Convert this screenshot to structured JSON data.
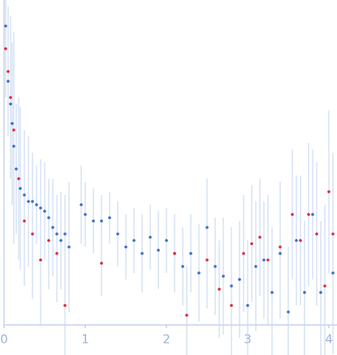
{
  "chart_data": {
    "type": "scatter",
    "xlim": [
      0,
      4.1
    ],
    "ylim": [
      0,
      100
    ],
    "xticks": [
      0,
      1,
      2,
      3,
      4
    ],
    "error_color": "#c3d4ee",
    "axis_color": "#aabde0",
    "series": [
      {
        "color": "#3a6fc4",
        "x": [
          0.02,
          0.05,
          0.08,
          0.1,
          0.12,
          0.15,
          0.2,
          0.25,
          0.3,
          0.35,
          0.4,
          0.45,
          0.5,
          0.55,
          0.6,
          0.65,
          0.7,
          0.75,
          0.8,
          0.95,
          1.0,
          1.1,
          1.2,
          1.3,
          1.4,
          1.5,
          1.6,
          1.7,
          1.8,
          1.9,
          2.0,
          2.1,
          2.2,
          2.3,
          2.4,
          2.5,
          2.6,
          2.7,
          2.8,
          2.9,
          3.0,
          3.1,
          3.2,
          3.3,
          3.4,
          3.5,
          3.6,
          3.7,
          3.8,
          3.9,
          4.05
        ],
        "values": [
          92,
          75,
          68,
          62,
          55,
          48,
          42,
          40,
          38,
          38,
          37,
          36,
          35,
          33,
          30,
          28,
          26,
          28,
          24,
          37,
          34,
          32,
          32,
          33,
          28,
          24,
          26,
          22,
          27,
          23,
          26,
          22,
          18,
          22,
          16,
          30,
          18,
          15,
          12,
          14,
          6,
          18,
          20,
          10,
          22,
          4,
          26,
          10,
          34,
          10,
          16
        ],
        "errors": [
          10,
          15,
          20,
          25,
          30,
          20,
          25,
          20,
          20,
          15,
          12,
          15,
          15,
          12,
          15,
          12,
          15,
          12,
          20,
          12,
          10,
          10,
          8,
          8,
          10,
          10,
          10,
          12,
          10,
          12,
          10,
          12,
          12,
          12,
          15,
          15,
          15,
          18,
          18,
          18,
          20,
          20,
          18,
          20,
          20,
          20,
          20,
          22,
          20,
          22,
          25
        ]
      },
      {
        "color": "#e0283c",
        "x": [
          0.02,
          0.05,
          0.08,
          0.12,
          0.18,
          0.25,
          0.35,
          0.45,
          0.55,
          0.65,
          0.75,
          1.2,
          2.1,
          2.25,
          2.5,
          2.65,
          2.8,
          2.95,
          3.05,
          3.15,
          3.25,
          3.4,
          3.55,
          3.65,
          3.75,
          3.85,
          3.95,
          4.0,
          4.05
        ],
        "values": [
          85,
          78,
          70,
          60,
          45,
          32,
          28,
          20,
          26,
          22,
          6,
          19,
          22,
          3,
          20,
          11,
          6,
          22,
          25,
          27,
          20,
          24,
          34,
          26,
          34,
          28,
          12,
          41,
          28
        ],
        "errors": [
          15,
          20,
          25,
          30,
          25,
          20,
          20,
          20,
          15,
          15,
          20,
          10,
          12,
          15,
          15,
          15,
          18,
          18,
          18,
          18,
          20,
          20,
          20,
          20,
          22,
          22,
          25,
          25,
          25
        ]
      }
    ]
  }
}
